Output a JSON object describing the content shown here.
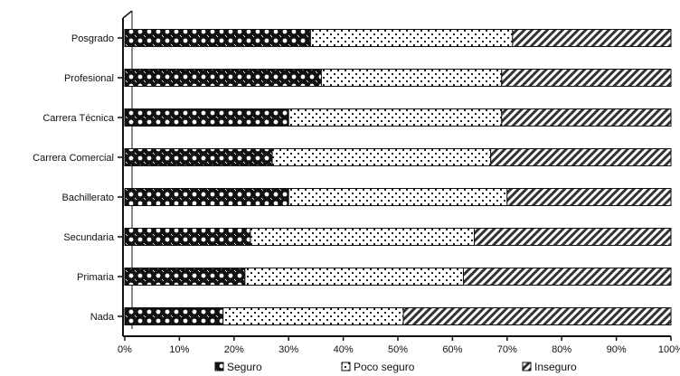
{
  "chart_data": {
    "type": "bar",
    "orientation": "horizontal",
    "stacked": true,
    "percent": true,
    "categories": [
      "Nada",
      "Primaria",
      "Secundaria",
      "Bachillerato",
      "Carrera Comercial",
      "Carrera Técnica",
      "Profesional",
      "Posgrado"
    ],
    "series": [
      {
        "name": "Seguro",
        "values": [
          18,
          22,
          23,
          30,
          27,
          30,
          36,
          34
        ]
      },
      {
        "name": "Poco seguro",
        "values": [
          33,
          40,
          41,
          40,
          40,
          39,
          33,
          37
        ]
      },
      {
        "name": "Inseguro",
        "values": [
          49,
          38,
          36,
          30,
          33,
          31,
          31,
          29
        ]
      }
    ],
    "xlim": [
      0,
      100
    ],
    "x_ticks": [
      "0%",
      "10%",
      "20%",
      "30%",
      "40%",
      "50%",
      "60%",
      "70%",
      "80%",
      "90%",
      "100%"
    ],
    "legend_position": "bottom",
    "grid": false,
    "colors": {
      "Seguro": "#111111",
      "Poco seguro": "#ffffff",
      "Inseguro": "#9a9a9a"
    }
  }
}
